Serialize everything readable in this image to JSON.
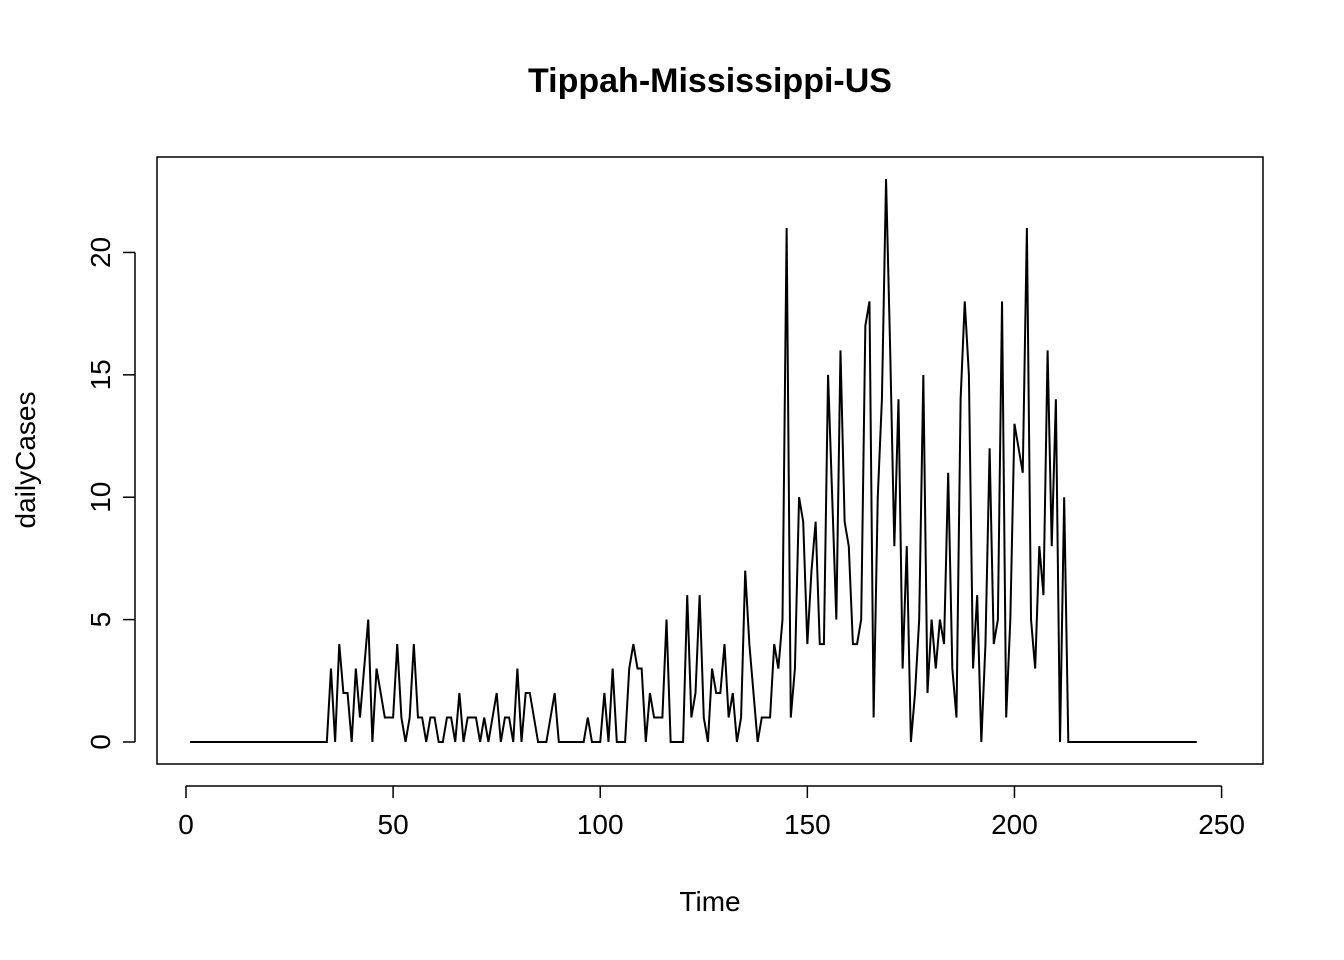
{
  "chart_data": {
    "type": "line",
    "title": "Tippah-Mississippi-US",
    "xlabel": "Time",
    "ylabel": "dailyCases",
    "xlim": [
      -7,
      260
    ],
    "ylim": [
      -0.9,
      23.9
    ],
    "xticks": [
      0,
      50,
      100,
      150,
      200,
      250
    ],
    "yticks": [
      0,
      5,
      10,
      15,
      20
    ],
    "grid": false,
    "x_start": 1,
    "x_step": 1,
    "values": [
      0,
      0,
      0,
      0,
      0,
      0,
      0,
      0,
      0,
      0,
      0,
      0,
      0,
      0,
      0,
      0,
      0,
      0,
      0,
      0,
      0,
      0,
      0,
      0,
      0,
      0,
      0,
      0,
      0,
      0,
      0,
      0,
      0,
      0,
      3,
      0,
      4,
      2,
      2,
      0,
      3,
      1,
      3,
      5,
      0,
      3,
      2,
      1,
      1,
      1,
      4,
      1,
      0,
      1,
      4,
      1,
      1,
      0,
      1,
      1,
      0,
      0,
      1,
      1,
      0,
      2,
      0,
      1,
      1,
      1,
      0,
      1,
      0,
      1,
      2,
      0,
      1,
      1,
      0,
      3,
      0,
      2,
      2,
      1,
      0,
      0,
      0,
      1,
      2,
      0,
      0,
      0,
      0,
      0,
      0,
      0,
      1,
      0,
      0,
      0,
      2,
      0,
      3,
      0,
      0,
      0,
      3,
      4,
      3,
      3,
      0,
      2,
      1,
      1,
      1,
      5,
      0,
      0,
      0,
      0,
      6,
      1,
      2,
      6,
      1,
      0,
      3,
      2,
      2,
      4,
      1,
      2,
      0,
      1,
      7,
      4,
      2,
      0,
      1,
      1,
      1,
      4,
      3,
      5,
      21,
      1,
      3,
      10,
      9,
      4,
      7,
      9,
      4,
      4,
      15,
      10,
      5,
      16,
      9,
      8,
      4,
      4,
      5,
      17,
      18,
      1,
      10,
      14,
      23,
      16,
      8,
      14,
      3,
      8,
      0,
      2,
      5,
      15,
      2,
      5,
      3,
      5,
      4,
      11,
      3,
      1,
      14,
      18,
      15,
      3,
      6,
      0,
      4,
      12,
      4,
      5,
      18,
      1,
      5,
      13,
      12,
      11,
      21,
      5,
      3,
      8,
      6,
      16,
      8,
      14,
      0,
      10,
      0,
      0,
      0,
      0,
      0,
      0,
      0,
      0,
      0,
      0,
      0,
      0,
      0,
      0,
      0,
      0,
      0,
      0,
      0,
      0,
      0,
      0,
      0,
      0,
      0,
      0,
      0,
      0,
      0,
      0,
      0,
      0
    ]
  }
}
